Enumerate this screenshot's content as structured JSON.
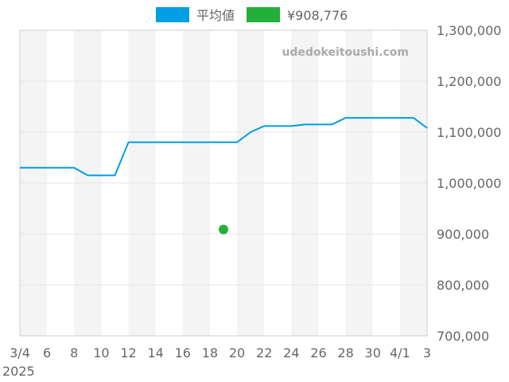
{
  "watermark": "udedokeitoushi.com",
  "legend": [
    {
      "label": "平均値",
      "color": "#009ee3"
    },
    {
      "label": "¥908,776",
      "color": "#22b03a"
    }
  ],
  "chart_data": {
    "type": "line",
    "grid": true,
    "legend_position": "top-center",
    "x_tick_labels": [
      "3/4",
      "6",
      "8",
      "10",
      "12",
      "14",
      "16",
      "18",
      "20",
      "22",
      "24",
      "26",
      "28",
      "30",
      "4/1",
      "3"
    ],
    "x_year_label": "2025",
    "y_tick_labels": [
      "1,300,000",
      "1,200,000",
      "1,100,000",
      "1,000,000",
      "900,000",
      "800,000",
      "700,000"
    ],
    "ylim": [
      700000,
      1300000
    ],
    "x_dates": [
      "2025-03-04",
      "2025-04-03"
    ],
    "series": [
      {
        "name": "平均値",
        "color": "#009ee3",
        "points": [
          [
            "2025-03-04",
            1030000
          ],
          [
            "2025-03-08",
            1030000
          ],
          [
            "2025-03-09",
            1015000
          ],
          [
            "2025-03-11",
            1015000
          ],
          [
            "2025-03-12",
            1080000
          ],
          [
            "2025-03-20",
            1080000
          ],
          [
            "2025-03-21",
            1100000
          ],
          [
            "2025-03-22",
            1112000
          ],
          [
            "2025-03-24",
            1112000
          ],
          [
            "2025-03-25",
            1115000
          ],
          [
            "2025-03-27",
            1115000
          ],
          [
            "2025-03-28",
            1128000
          ],
          [
            "2025-04-02",
            1128000
          ],
          [
            "2025-04-03",
            1108000
          ]
        ]
      },
      {
        "name": "¥908,776",
        "type": "scatter",
        "color": "#22b03a",
        "points": [
          [
            "2025-03-19",
            908776
          ]
        ]
      }
    ]
  }
}
